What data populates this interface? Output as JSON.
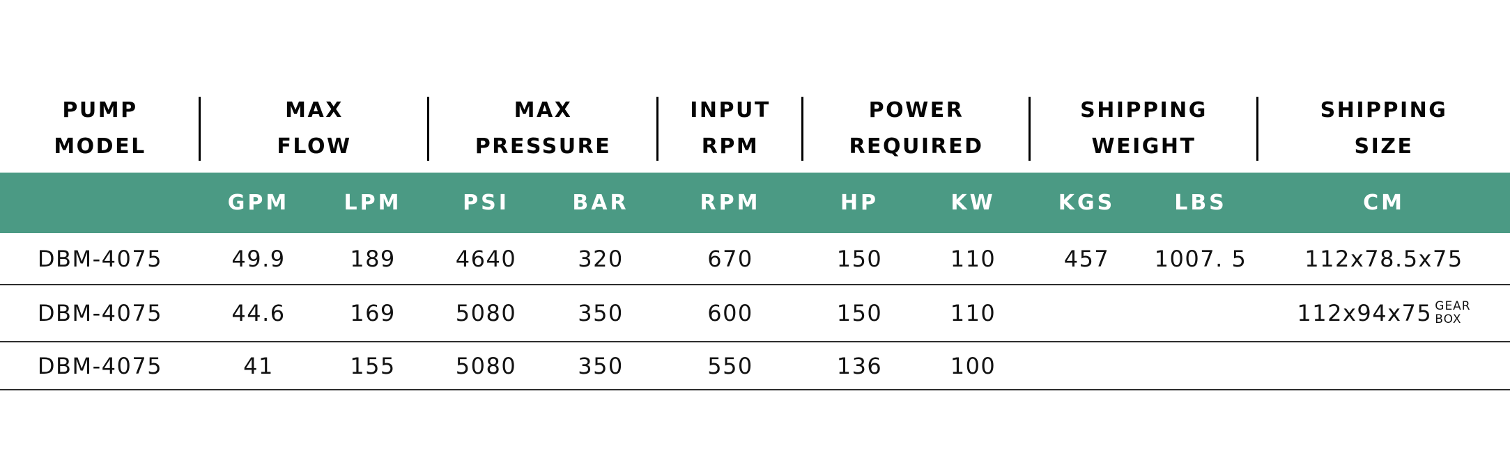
{
  "colors": {
    "band_background": "#4B9A84",
    "band_text": "#FFFFFF",
    "header_text": "#050505",
    "data_text": "#121212",
    "row_rule": "#2D2D2D",
    "divider": "#000000"
  },
  "chart_data": {
    "type": "table",
    "group_headers": [
      {
        "lines": [
          "PUMP",
          "MODEL"
        ],
        "span": 1
      },
      {
        "lines": [
          "MAX",
          "FLOW"
        ],
        "span": 2
      },
      {
        "lines": [
          "MAX",
          "PRESSURE"
        ],
        "span": 2
      },
      {
        "lines": [
          "INPUT",
          "RPM"
        ],
        "span": 1
      },
      {
        "lines": [
          "POWER",
          "REQUIRED"
        ],
        "span": 2
      },
      {
        "lines": [
          "SHIPPING",
          "WEIGHT"
        ],
        "span": 2
      },
      {
        "lines": [
          "SHIPPING",
          "SIZE"
        ],
        "span": 1
      }
    ],
    "unit_headers": [
      "",
      "GPM",
      "LPM",
      "PSI",
      "BAR",
      "RPM",
      "HP",
      "KW",
      "KGS",
      "LBS",
      "CM"
    ],
    "rows": [
      {
        "cells": [
          "DBM-4075",
          "49.9",
          "189",
          "4640",
          "320",
          "670",
          "150",
          "110",
          "457",
          "1007. 5",
          "112x78.5x75"
        ],
        "note_lines": []
      },
      {
        "cells": [
          "DBM-4075",
          "44.6",
          "169",
          "5080",
          "350",
          "600",
          "150",
          "110",
          "",
          "",
          "112x94x75"
        ],
        "note_lines": [
          "GEAR",
          "BOX"
        ]
      },
      {
        "cells": [
          "DBM-4075",
          "41",
          "155",
          "5080",
          "350",
          "550",
          "136",
          "100",
          "",
          "",
          ""
        ],
        "note_lines": []
      }
    ]
  }
}
